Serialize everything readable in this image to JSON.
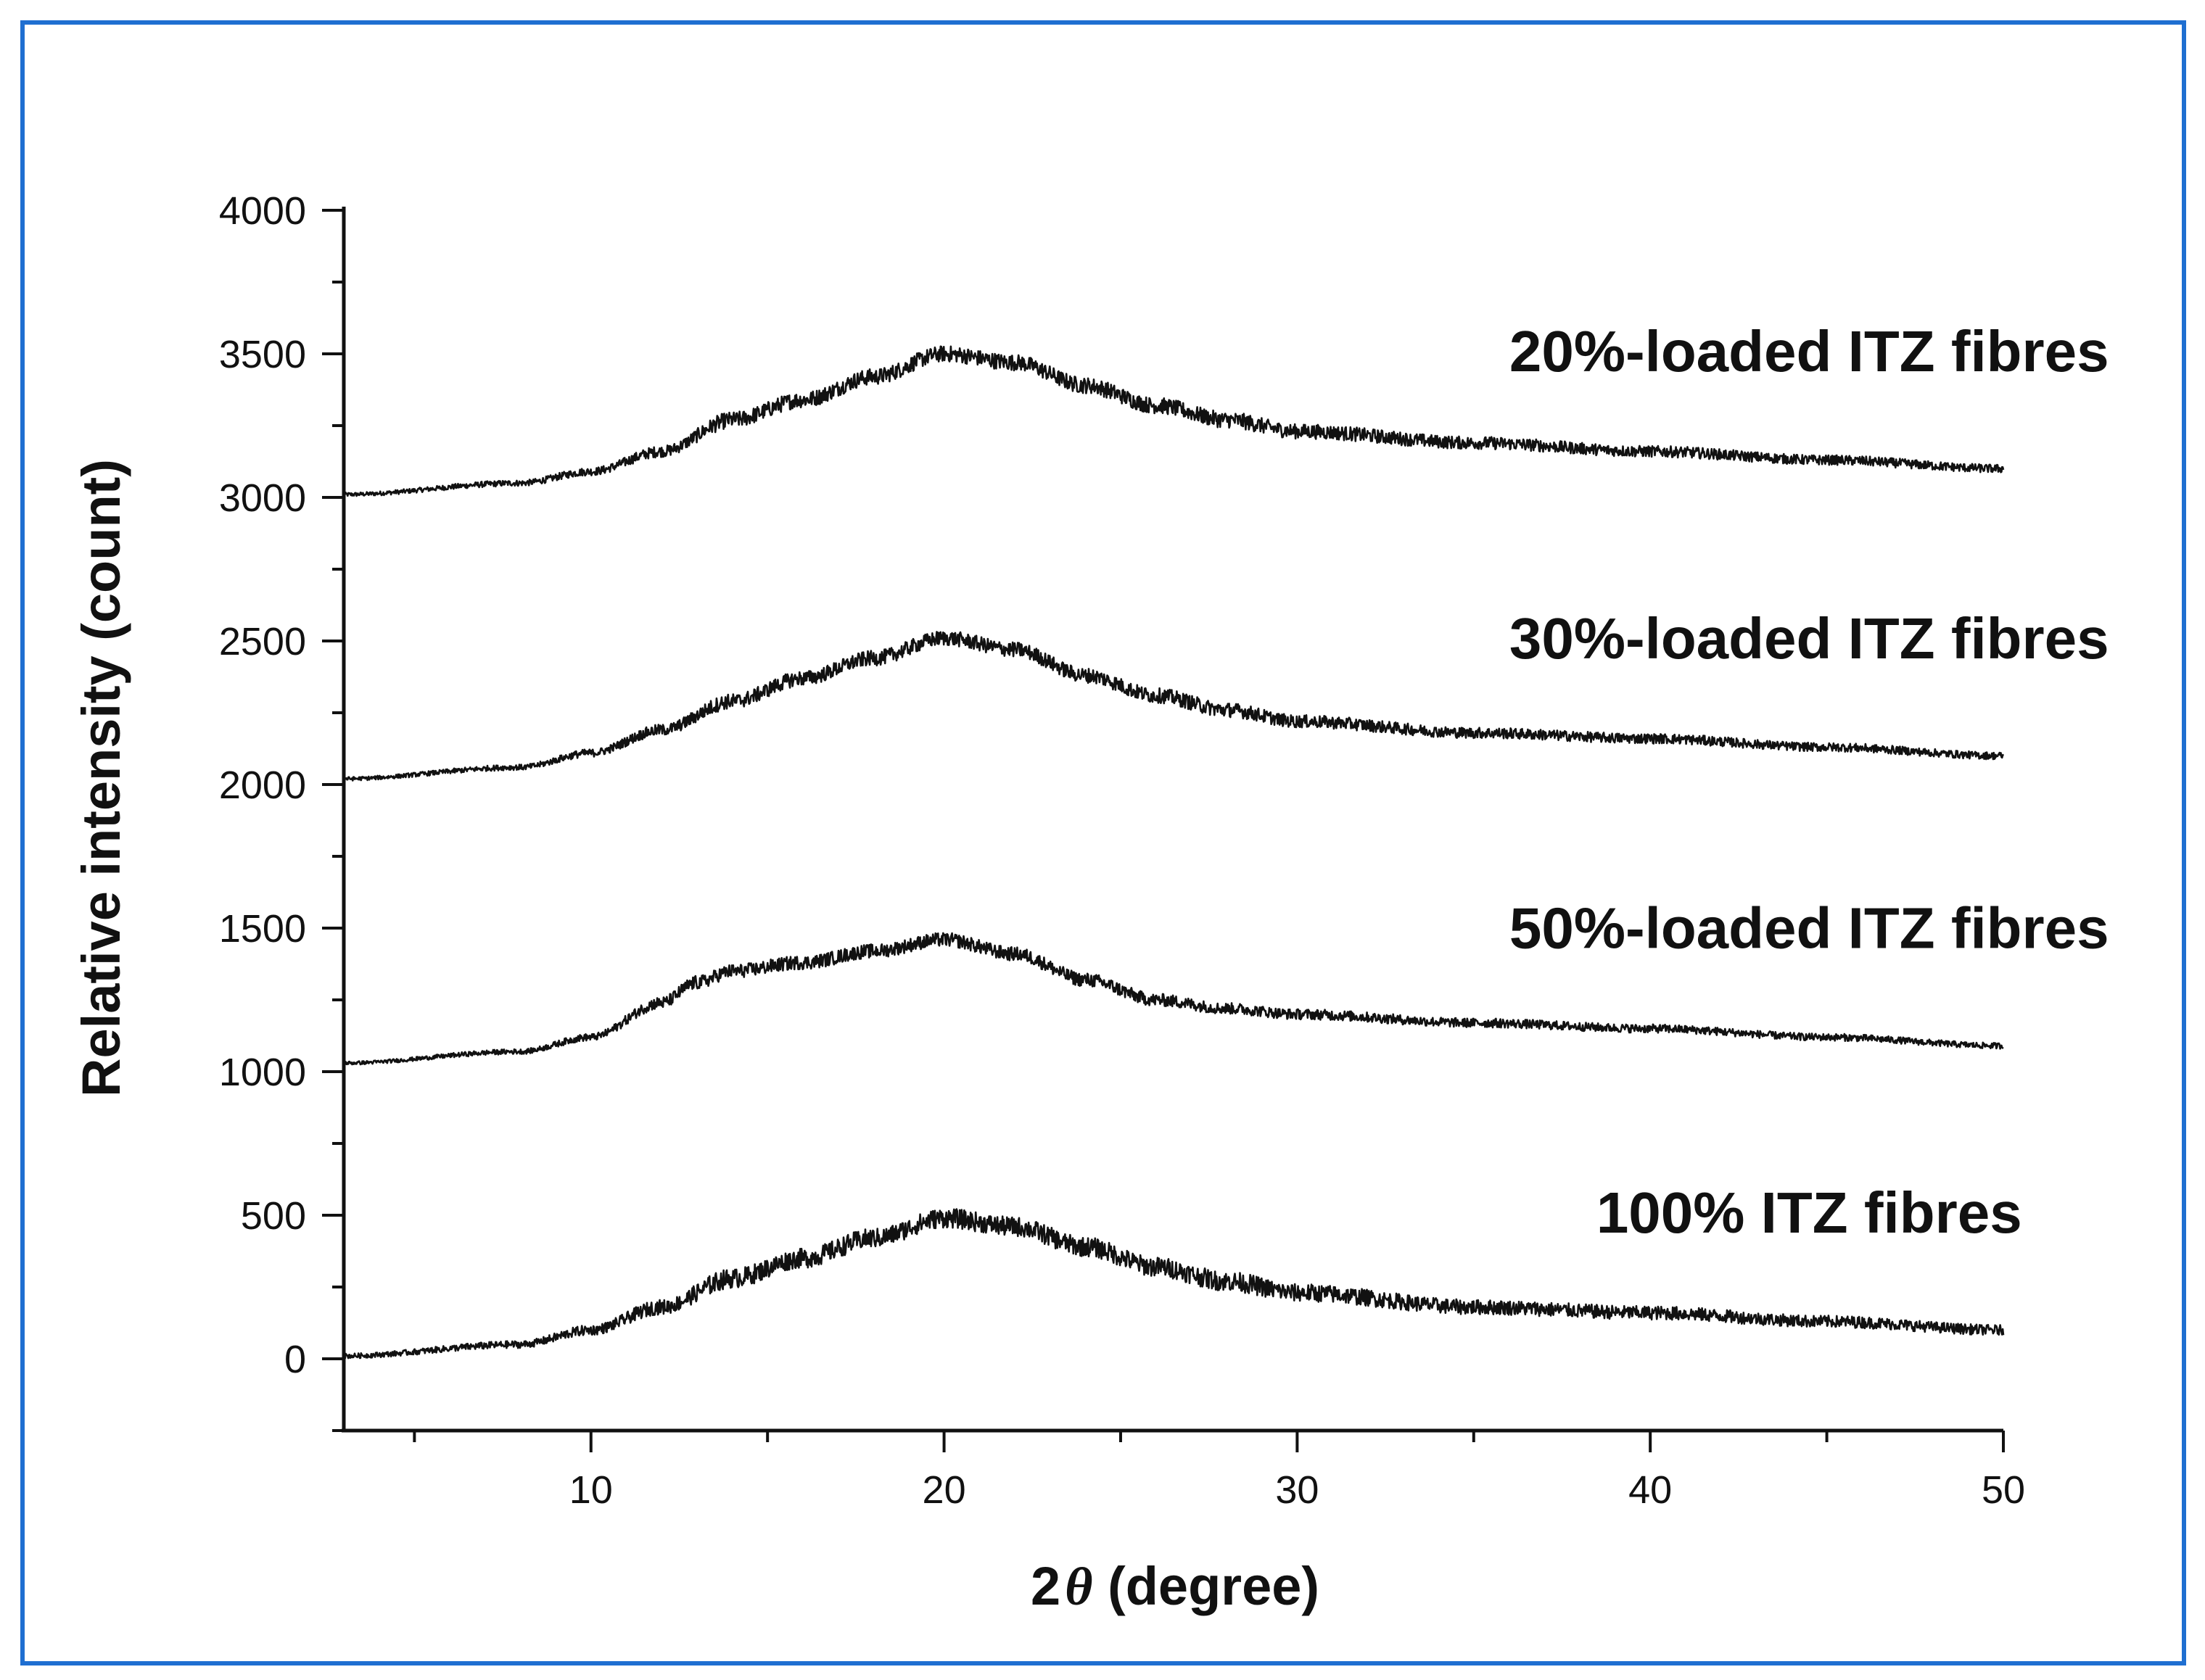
{
  "colors": {
    "frame": "#1f6fd1",
    "line": "#111111",
    "background": "#ffffff"
  },
  "chart_data": {
    "type": "line",
    "title": "",
    "xlabel_prefix": "2",
    "xlabel_symbol": "θ",
    "xlabel_suffix": " (degree)",
    "ylabel": "Relative intensity (count)",
    "xlim": [
      3,
      50
    ],
    "ylim": [
      -250,
      4000
    ],
    "x_ticks": [
      10,
      20,
      30,
      40,
      50
    ],
    "y_ticks": [
      0,
      500,
      1000,
      1500,
      2000,
      2500,
      3000,
      3500,
      4000
    ],
    "grid": false,
    "series": [
      {
        "name": "20%-loaded ITZ fibres",
        "label": "20%-loaded ITZ fibres",
        "x": [
          3,
          8,
          10,
          12,
          14,
          16,
          18,
          20,
          22,
          24,
          26,
          28,
          30,
          35,
          40,
          45,
          50
        ],
        "values": [
          3010,
          3050,
          3090,
          3160,
          3270,
          3340,
          3420,
          3500,
          3470,
          3390,
          3320,
          3270,
          3230,
          3190,
          3160,
          3130,
          3100
        ],
        "noise": 28
      },
      {
        "name": "30%-loaded ITZ fibres",
        "label": "30%-loaded ITZ fibres",
        "x": [
          3,
          8,
          10,
          12,
          14,
          16,
          18,
          20,
          22,
          24,
          26,
          28,
          30,
          35,
          40,
          45,
          50
        ],
        "values": [
          2020,
          2060,
          2110,
          2190,
          2290,
          2370,
          2440,
          2510,
          2470,
          2380,
          2310,
          2260,
          2220,
          2180,
          2160,
          2130,
          2100
        ],
        "noise": 26
      },
      {
        "name": "50%-loaded ITZ fibres",
        "label": "50%-loaded ITZ fibres",
        "x": [
          3,
          8,
          10,
          12,
          13,
          14,
          16,
          18,
          20,
          22,
          24,
          26,
          28,
          30,
          35,
          40,
          45,
          50
        ],
        "values": [
          1030,
          1070,
          1120,
          1240,
          1310,
          1350,
          1380,
          1420,
          1460,
          1410,
          1320,
          1250,
          1220,
          1200,
          1170,
          1150,
          1120,
          1090
        ],
        "noise": 24
      },
      {
        "name": "100% ITZ fibres",
        "label": "100% ITZ fibres",
        "x": [
          3,
          8,
          10,
          12,
          14,
          16,
          18,
          20,
          22,
          24,
          26,
          28,
          30,
          35,
          40,
          45,
          50
        ],
        "values": [
          10,
          50,
          100,
          180,
          280,
          350,
          420,
          490,
          460,
          390,
          320,
          270,
          230,
          180,
          160,
          130,
          100
        ],
        "noise": 34
      }
    ]
  }
}
